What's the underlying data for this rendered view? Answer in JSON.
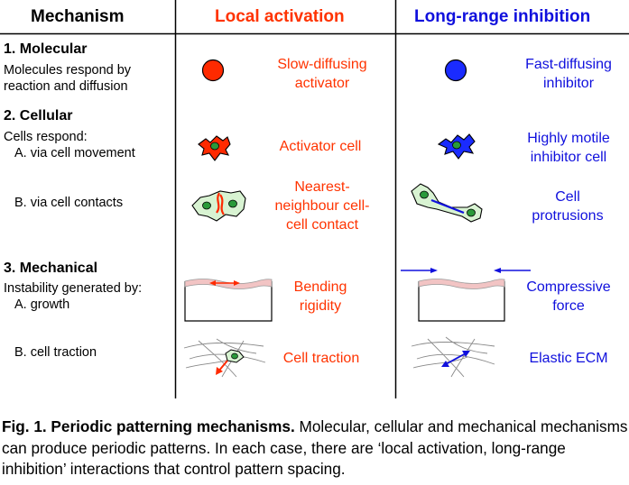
{
  "headers": {
    "mechanism": "Mechanism",
    "local": "Local activation",
    "longrange": "Long-range inhibition"
  },
  "colors": {
    "activator": "#ff3300",
    "inhibitor": "#1010dd",
    "substrate": "#f2c4c4",
    "ecm": "#888888"
  },
  "rows": {
    "molecular": {
      "title": "1. Molecular",
      "desc1": "Molecules respond by",
      "desc2": "reaction and diffusion",
      "local1": "Slow-diffusing",
      "local2": "activator",
      "long1": "Fast-diffusing",
      "long2": "inhibitor"
    },
    "cellular": {
      "title": "2. Cellular",
      "desc1": "Cells respond:",
      "descA": "A. via cell movement",
      "localA": "Activator cell",
      "longA1": "Highly motile",
      "longA2": "inhibitor cell",
      "descB": "B. via cell contacts",
      "localB1": "Nearest-",
      "localB2": "neighbour cell-",
      "localB3": "cell contact",
      "longB1": "Cell",
      "longB2": "protrusions"
    },
    "mechanical": {
      "title": "3. Mechanical",
      "desc1": "Instability generated by:",
      "descA": "A. growth",
      "localA1": "Bending",
      "localA2": "rigidity",
      "longA1": "Compressive",
      "longA2": "force",
      "descB": "B. cell traction",
      "localB": "Cell traction",
      "longB": "Elastic ECM"
    }
  },
  "caption": {
    "bold": "Fig. 1. Periodic patterning mechanisms.",
    "text": " Molecular, cellular and mechanical mechanisms can produce periodic patterns. In each case, there are ‘local activation, long-range inhibition’ interactions that control pattern spacing."
  }
}
